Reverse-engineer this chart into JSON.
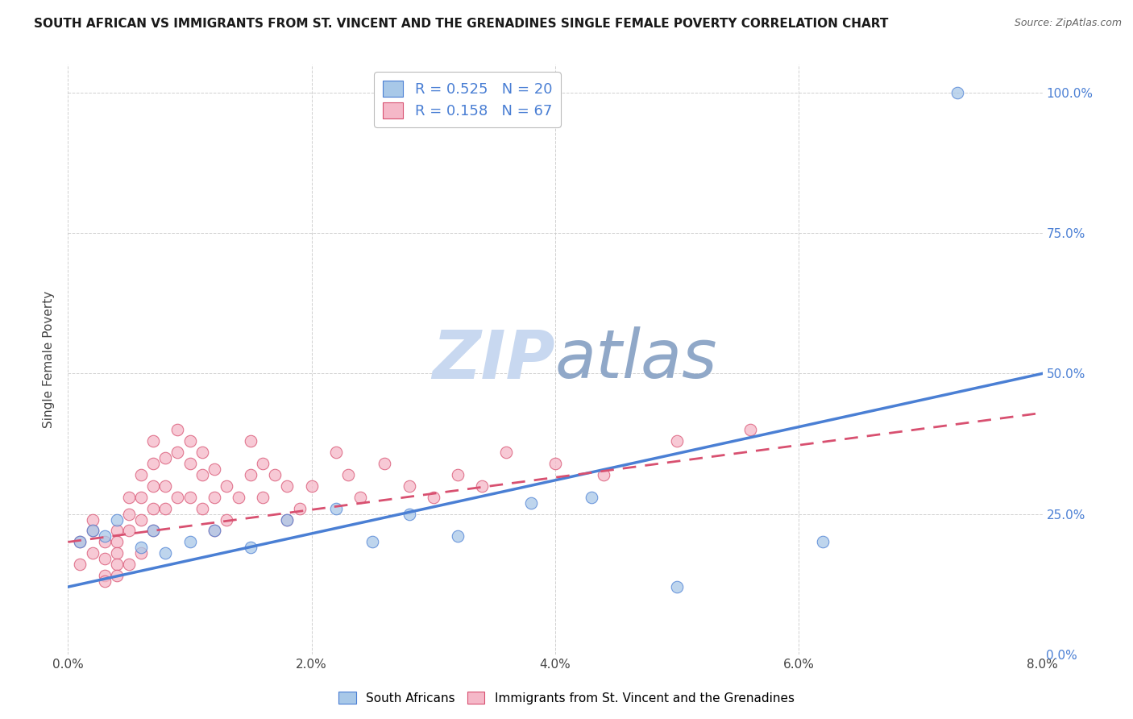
{
  "title": "SOUTH AFRICAN VS IMMIGRANTS FROM ST. VINCENT AND THE GRENADINES SINGLE FEMALE POVERTY CORRELATION CHART",
  "source": "Source: ZipAtlas.com",
  "ylabel": "Single Female Poverty",
  "xlabel_ticks": [
    "0.0%",
    "2.0%",
    "4.0%",
    "6.0%",
    "8.0%"
  ],
  "ylabel_ticks": [
    "0.0%",
    "25.0%",
    "50.0%",
    "75.0%",
    "100.0%"
  ],
  "xlim": [
    0.0,
    0.08
  ],
  "ylim": [
    0.0,
    1.05
  ],
  "ytick_vals": [
    0.0,
    0.25,
    0.5,
    0.75,
    1.0
  ],
  "xtick_vals": [
    0.0,
    0.02,
    0.04,
    0.06,
    0.08
  ],
  "blue_R": 0.525,
  "blue_N": 20,
  "pink_R": 0.158,
  "pink_N": 67,
  "blue_color": "#a8c8e8",
  "blue_line_color": "#4a7fd4",
  "pink_color": "#f5b8c8",
  "pink_line_color": "#d85070",
  "watermark_zip_color": "#c8d8f0",
  "watermark_atlas_color": "#90a8c8",
  "blue_scatter_x": [
    0.001,
    0.002,
    0.003,
    0.004,
    0.006,
    0.007,
    0.008,
    0.01,
    0.012,
    0.015,
    0.018,
    0.022,
    0.025,
    0.028,
    0.032,
    0.038,
    0.043,
    0.05,
    0.062,
    0.073
  ],
  "blue_scatter_y": [
    0.2,
    0.22,
    0.21,
    0.24,
    0.19,
    0.22,
    0.18,
    0.2,
    0.22,
    0.19,
    0.24,
    0.26,
    0.2,
    0.25,
    0.21,
    0.27,
    0.28,
    0.12,
    0.2,
    1.0
  ],
  "pink_scatter_x": [
    0.001,
    0.001,
    0.002,
    0.002,
    0.002,
    0.003,
    0.003,
    0.003,
    0.003,
    0.004,
    0.004,
    0.004,
    0.004,
    0.004,
    0.005,
    0.005,
    0.005,
    0.005,
    0.006,
    0.006,
    0.006,
    0.006,
    0.007,
    0.007,
    0.007,
    0.007,
    0.007,
    0.008,
    0.008,
    0.008,
    0.009,
    0.009,
    0.009,
    0.01,
    0.01,
    0.01,
    0.011,
    0.011,
    0.011,
    0.012,
    0.012,
    0.012,
    0.013,
    0.013,
    0.014,
    0.015,
    0.015,
    0.016,
    0.016,
    0.017,
    0.018,
    0.018,
    0.019,
    0.02,
    0.022,
    0.023,
    0.024,
    0.026,
    0.028,
    0.03,
    0.032,
    0.034,
    0.036,
    0.04,
    0.044,
    0.05,
    0.056
  ],
  "pink_scatter_y": [
    0.2,
    0.16,
    0.22,
    0.18,
    0.24,
    0.2,
    0.17,
    0.14,
    0.13,
    0.22,
    0.2,
    0.18,
    0.16,
    0.14,
    0.28,
    0.25,
    0.22,
    0.16,
    0.32,
    0.28,
    0.24,
    0.18,
    0.38,
    0.34,
    0.3,
    0.26,
    0.22,
    0.35,
    0.3,
    0.26,
    0.4,
    0.36,
    0.28,
    0.38,
    0.34,
    0.28,
    0.36,
    0.32,
    0.26,
    0.33,
    0.28,
    0.22,
    0.3,
    0.24,
    0.28,
    0.38,
    0.32,
    0.34,
    0.28,
    0.32,
    0.3,
    0.24,
    0.26,
    0.3,
    0.36,
    0.32,
    0.28,
    0.34,
    0.3,
    0.28,
    0.32,
    0.3,
    0.36,
    0.34,
    0.32,
    0.38,
    0.4
  ],
  "blue_line_x": [
    0.0,
    0.08
  ],
  "blue_line_y": [
    0.12,
    0.5
  ],
  "pink_line_x": [
    0.0,
    0.08
  ],
  "pink_line_y": [
    0.2,
    0.43
  ],
  "legend_label_blue": "South Africans",
  "legend_label_pink": "Immigrants from St. Vincent and the Grenadines",
  "background_color": "#ffffff",
  "grid_color": "#cccccc"
}
